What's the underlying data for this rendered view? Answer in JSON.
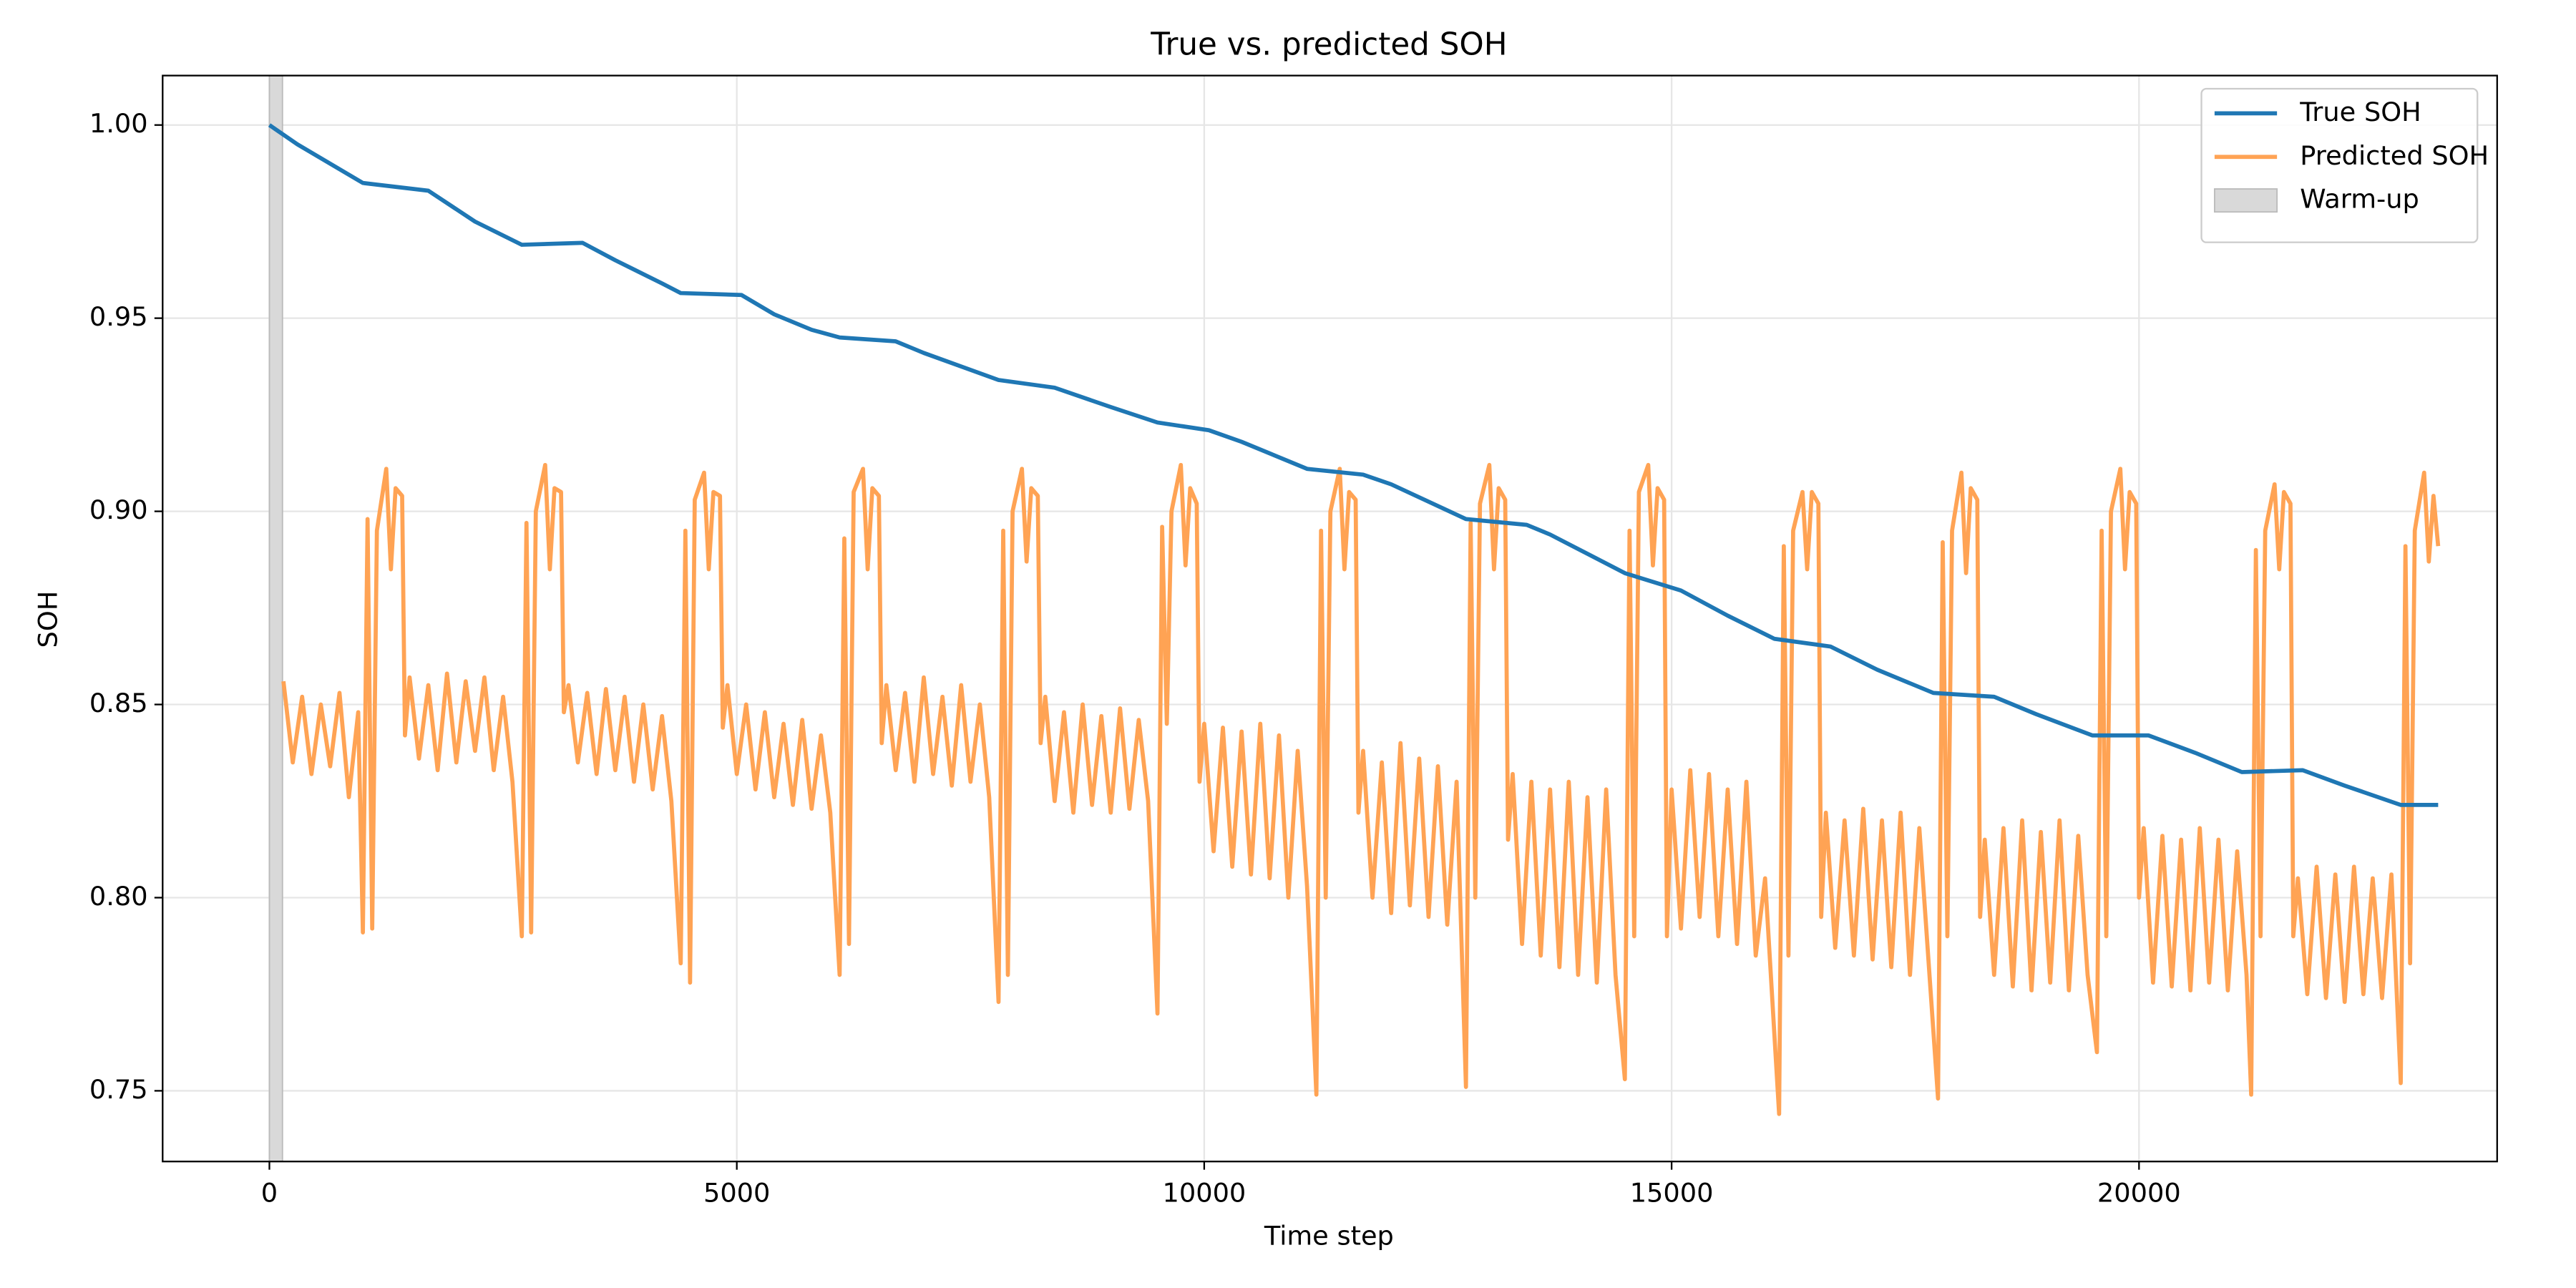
{
  "chart_data": {
    "type": "line",
    "title": "True vs. predicted SOH",
    "xlabel": "Time step",
    "ylabel": "SOH",
    "xlim": [
      -1142,
      23831
    ],
    "ylim": [
      0.7317,
      1.0128
    ],
    "xticks": [
      0,
      5000,
      10000,
      15000,
      20000
    ],
    "yticks": [
      {
        "value": 0.75,
        "label": "0.75"
      },
      {
        "value": 0.8,
        "label": "0.80"
      },
      {
        "value": 0.85,
        "label": "0.85"
      },
      {
        "value": 0.9,
        "label": "0.90"
      },
      {
        "value": 0.95,
        "label": "0.95"
      },
      {
        "value": 1.0,
        "label": "1.00"
      }
    ],
    "grid": true,
    "legend": "upper right",
    "spans": [
      {
        "name": "Warm-up",
        "color": "#d9d9d9",
        "x0": 0,
        "x1": 140
      }
    ],
    "series": [
      {
        "name": "True SOH",
        "color": "#1f77b4",
        "width": 2.5,
        "x": [
          0,
          300,
          1000,
          1700,
          2200,
          2700,
          3350,
          3700,
          4200,
          4400,
          5050,
          5400,
          5800,
          6100,
          6700,
          7000,
          7800,
          8400,
          9000,
          9500,
          10050,
          10400,
          11100,
          11700,
          12000,
          12800,
          13450,
          13700,
          14100,
          14500,
          15100,
          15600,
          16100,
          16700,
          17200,
          17800,
          18450,
          18900,
          19500,
          20100,
          20600,
          21100,
          21750,
          22200,
          22800,
          23200
        ],
        "values": [
          1.0,
          0.995,
          0.985,
          0.983,
          0.975,
          0.969,
          0.9695,
          0.965,
          0.959,
          0.9565,
          0.956,
          0.951,
          0.947,
          0.945,
          0.944,
          0.941,
          0.934,
          0.932,
          0.927,
          0.923,
          0.921,
          0.918,
          0.911,
          0.9095,
          0.907,
          0.898,
          0.8965,
          0.894,
          0.889,
          0.884,
          0.8795,
          0.873,
          0.867,
          0.865,
          0.859,
          0.853,
          0.852,
          0.8475,
          0.842,
          0.842,
          0.8375,
          0.8325,
          0.833,
          0.829,
          0.824,
          0.824
        ]
      },
      {
        "name": "Predicted SOH",
        "color": "#ffa354",
        "width": 2.5,
        "x": [
          150,
          250,
          350,
          450,
          550,
          650,
          750,
          850,
          950,
          1000,
          1050,
          1100,
          1150,
          1250,
          1300,
          1350,
          1420,
          1450,
          1500,
          1600,
          1700,
          1800,
          1900,
          2000,
          2100,
          2200,
          2300,
          2400,
          2500,
          2600,
          2700,
          2750,
          2800,
          2850,
          2950,
          3000,
          3050,
          3120,
          3150,
          3200,
          3300,
          3400,
          3500,
          3600,
          3700,
          3800,
          3900,
          4000,
          4100,
          4200,
          4300,
          4400,
          4450,
          4500,
          4550,
          4650,
          4700,
          4750,
          4820,
          4850,
          4900,
          5000,
          5100,
          5200,
          5300,
          5400,
          5500,
          5600,
          5700,
          5800,
          5900,
          6000,
          6100,
          6150,
          6200,
          6250,
          6350,
          6400,
          6450,
          6520,
          6550,
          6600,
          6700,
          6800,
          6900,
          7000,
          7100,
          7200,
          7300,
          7400,
          7500,
          7600,
          7700,
          7800,
          7850,
          7900,
          7950,
          8050,
          8100,
          8150,
          8220,
          8250,
          8300,
          8400,
          8500,
          8600,
          8700,
          8800,
          8900,
          9000,
          9100,
          9200,
          9300,
          9400,
          9500,
          9550,
          9600,
          9650,
          9750,
          9800,
          9850,
          9920,
          9950,
          10000,
          10100,
          10200,
          10300,
          10400,
          10500,
          10600,
          10700,
          10800,
          10900,
          11000,
          11100,
          11200,
          11250,
          11300,
          11350,
          11450,
          11500,
          11550,
          11620,
          11650,
          11700,
          11800,
          11900,
          12000,
          12100,
          12200,
          12300,
          12400,
          12500,
          12600,
          12700,
          12800,
          12850,
          12900,
          12950,
          13050,
          13100,
          13150,
          13220,
          13250,
          13300,
          13400,
          13500,
          13600,
          13700,
          13800,
          13900,
          14000,
          14100,
          14200,
          14300,
          14400,
          14500,
          14550,
          14600,
          14650,
          14750,
          14800,
          14850,
          14920,
          14950,
          15000,
          15100,
          15200,
          15300,
          15400,
          15500,
          15600,
          15700,
          15800,
          15900,
          16000,
          16150,
          16200,
          16250,
          16300,
          16400,
          16450,
          16500,
          16570,
          16600,
          16650,
          16750,
          16850,
          16950,
          17050,
          17150,
          17250,
          17350,
          17450,
          17550,
          17650,
          17750,
          17850,
          17900,
          17950,
          18000,
          18100,
          18150,
          18200,
          18270,
          18300,
          18350,
          18450,
          18550,
          18650,
          18750,
          18850,
          18950,
          19050,
          19150,
          19250,
          19350,
          19450,
          19550,
          19600,
          19650,
          19700,
          19800,
          19850,
          19900,
          19970,
          20000,
          20050,
          20150,
          20250,
          20350,
          20450,
          20550,
          20650,
          20750,
          20850,
          20950,
          21050,
          21150,
          21200,
          21250,
          21300,
          21350,
          21450,
          21500,
          21550,
          21620,
          21650,
          21700,
          21800,
          21900,
          22000,
          22100,
          22200,
          22300,
          22400,
          22500,
          22600,
          22700,
          22800,
          22850,
          22900,
          22950,
          23050,
          23100,
          23150,
          23200
        ],
        "values": [
          0.856,
          0.835,
          0.852,
          0.832,
          0.85,
          0.834,
          0.853,
          0.826,
          0.848,
          0.791,
          0.898,
          0.792,
          0.895,
          0.911,
          0.885,
          0.906,
          0.904,
          0.842,
          0.857,
          0.836,
          0.855,
          0.833,
          0.858,
          0.835,
          0.856,
          0.838,
          0.857,
          0.833,
          0.852,
          0.83,
          0.79,
          0.897,
          0.791,
          0.9,
          0.912,
          0.885,
          0.906,
          0.905,
          0.848,
          0.855,
          0.835,
          0.853,
          0.832,
          0.854,
          0.833,
          0.852,
          0.83,
          0.85,
          0.828,
          0.847,
          0.825,
          0.783,
          0.895,
          0.778,
          0.903,
          0.91,
          0.885,
          0.905,
          0.904,
          0.844,
          0.855,
          0.832,
          0.85,
          0.828,
          0.848,
          0.826,
          0.845,
          0.824,
          0.846,
          0.823,
          0.842,
          0.822,
          0.78,
          0.893,
          0.788,
          0.905,
          0.911,
          0.885,
          0.906,
          0.904,
          0.84,
          0.855,
          0.833,
          0.853,
          0.83,
          0.857,
          0.832,
          0.852,
          0.829,
          0.855,
          0.83,
          0.85,
          0.826,
          0.773,
          0.895,
          0.78,
          0.9,
          0.911,
          0.887,
          0.906,
          0.904,
          0.84,
          0.852,
          0.825,
          0.848,
          0.822,
          0.85,
          0.824,
          0.847,
          0.822,
          0.849,
          0.823,
          0.846,
          0.825,
          0.77,
          0.896,
          0.845,
          0.9,
          0.912,
          0.886,
          0.906,
          0.902,
          0.83,
          0.845,
          0.812,
          0.844,
          0.808,
          0.843,
          0.806,
          0.845,
          0.805,
          0.842,
          0.8,
          0.838,
          0.803,
          0.749,
          0.895,
          0.8,
          0.9,
          0.911,
          0.885,
          0.905,
          0.903,
          0.822,
          0.838,
          0.8,
          0.835,
          0.796,
          0.84,
          0.798,
          0.836,
          0.795,
          0.834,
          0.793,
          0.83,
          0.751,
          0.897,
          0.8,
          0.902,
          0.912,
          0.885,
          0.906,
          0.903,
          0.815,
          0.832,
          0.788,
          0.83,
          0.785,
          0.828,
          0.782,
          0.83,
          0.78,
          0.826,
          0.778,
          0.828,
          0.78,
          0.753,
          0.895,
          0.79,
          0.905,
          0.912,
          0.886,
          0.906,
          0.903,
          0.79,
          0.828,
          0.792,
          0.833,
          0.795,
          0.832,
          0.79,
          0.828,
          0.788,
          0.83,
          0.785,
          0.805,
          0.744,
          0.891,
          0.785,
          0.895,
          0.905,
          0.885,
          0.905,
          0.902,
          0.795,
          0.822,
          0.787,
          0.82,
          0.785,
          0.823,
          0.784,
          0.82,
          0.782,
          0.822,
          0.78,
          0.818,
          0.783,
          0.748,
          0.892,
          0.79,
          0.895,
          0.91,
          0.884,
          0.906,
          0.903,
          0.795,
          0.815,
          0.78,
          0.818,
          0.777,
          0.82,
          0.776,
          0.817,
          0.778,
          0.82,
          0.776,
          0.816,
          0.78,
          0.76,
          0.895,
          0.79,
          0.9,
          0.911,
          0.885,
          0.905,
          0.902,
          0.8,
          0.818,
          0.778,
          0.816,
          0.777,
          0.815,
          0.776,
          0.818,
          0.778,
          0.815,
          0.776,
          0.812,
          0.78,
          0.749,
          0.89,
          0.79,
          0.895,
          0.907,
          0.885,
          0.905,
          0.902,
          0.79,
          0.805,
          0.775,
          0.808,
          0.774,
          0.806,
          0.773,
          0.808,
          0.775,
          0.805,
          0.774,
          0.806,
          0.752,
          0.891,
          0.783,
          0.895,
          0.91,
          0.887,
          0.904,
          0.891
        ]
      }
    ]
  }
}
